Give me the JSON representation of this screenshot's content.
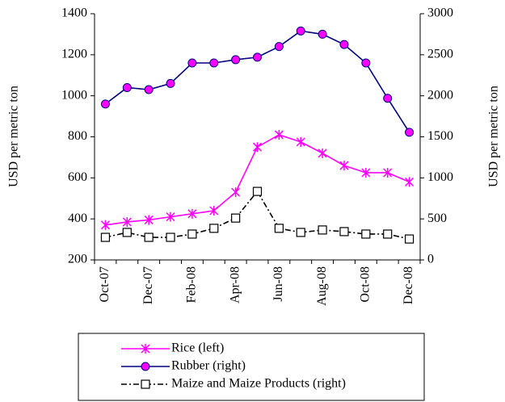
{
  "chart_data": {
    "type": "line",
    "categories": [
      "Oct-07",
      null,
      "Dec-07",
      null,
      "Feb-08",
      null,
      "Apr-08",
      null,
      "Jun-08",
      null,
      "Aug-08",
      null,
      "Oct-08",
      null,
      "Dec-08"
    ],
    "ylabel": "USD per metric ton",
    "y2label": "USD per metric ton",
    "ylim": [
      200,
      1400
    ],
    "yticks": [
      200,
      400,
      600,
      800,
      1000,
      1200,
      1400
    ],
    "y2lim": [
      0,
      3000
    ],
    "y2ticks": [
      0,
      500,
      1000,
      1500,
      2000,
      2500,
      3000
    ],
    "legend": "bottom",
    "series": [
      {
        "name": "Rice (left)",
        "color": "#ff00ff",
        "marker": "asterisk",
        "marker_color": "#ff00ff",
        "dash": "solid",
        "values": [
          370,
          385,
          395,
          410,
          425,
          440,
          530,
          750,
          810,
          775,
          720,
          660,
          625,
          625,
          580
        ]
      },
      {
        "name": "Rubber (right)",
        "color": "#000080",
        "marker": "circle",
        "marker_color": "#ff00ff",
        "dash": "solid",
        "axis": "y2",
        "values": [
          1900,
          2100,
          2075,
          2150,
          2400,
          2400,
          2440,
          2470,
          2600,
          2790,
          2750,
          2625,
          2400,
          1970,
          1555
        ]
      },
      {
        "name": "Maize and Maize Products (right)",
        "color": "#000000",
        "marker": "square",
        "marker_color": "#ffffff",
        "dash": "dashdot",
        "axis": "y2",
        "values": [
          275,
          335,
          275,
          275,
          315,
          385,
          510,
          835,
          385,
          335,
          365,
          345,
          315,
          315,
          255
        ]
      }
    ]
  }
}
